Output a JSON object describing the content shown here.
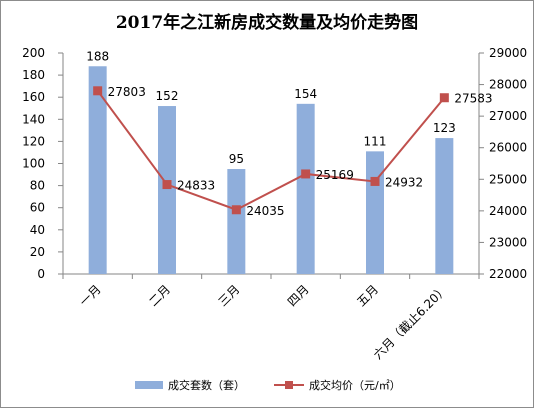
{
  "chart_data": {
    "type": "bar+line",
    "title": "2017年之江新房成交数量及均价走势图",
    "categories": [
      "一月",
      "二月",
      "三月",
      "四月",
      "五月",
      "六月（截止6.20）"
    ],
    "series": [
      {
        "name": "成交套数（套）",
        "type": "bar",
        "axis": "left",
        "color": "#8FAEDB",
        "values": [
          188,
          152,
          95,
          154,
          111,
          123
        ]
      },
      {
        "name": "成交均价（元/㎡）",
        "type": "line",
        "axis": "right",
        "color": "#C0504D",
        "values": [
          27803,
          24833,
          24035,
          25169,
          24932,
          27583
        ]
      }
    ],
    "y_left": {
      "min": 0,
      "max": 200,
      "step": 20,
      "ticks": [
        "0",
        "20",
        "40",
        "60",
        "80",
        "100",
        "120",
        "140",
        "160",
        "180",
        "200"
      ]
    },
    "y_right": {
      "min": 22000,
      "max": 29000,
      "step": 1000,
      "ticks": [
        "22000",
        "23000",
        "24000",
        "25000",
        "26000",
        "27000",
        "28000",
        "29000"
      ]
    },
    "grid": false,
    "legend": "bottom"
  }
}
